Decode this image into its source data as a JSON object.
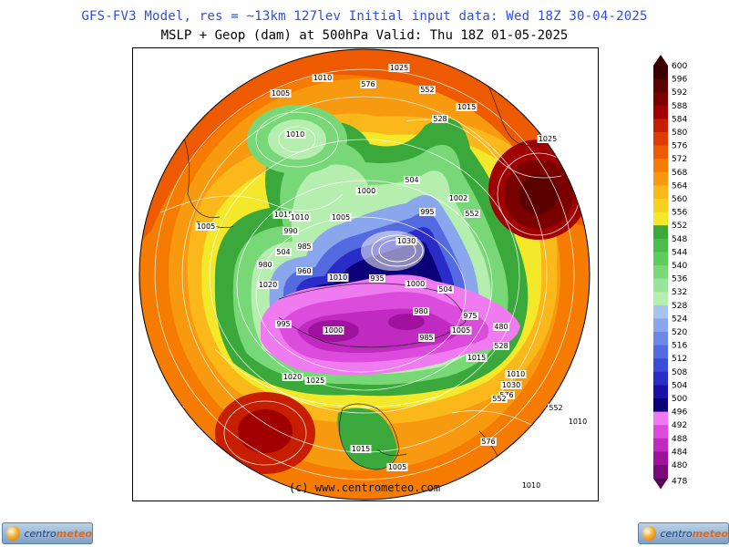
{
  "header": {
    "line1": "GFS-FV3 Model, res = ~13km 127lev     Initial input data: Wed 18Z 30-04-2025",
    "line2": "MSLP + Geop (dam) at 500hPa  Valid: Thu 18Z 01-05-2025"
  },
  "map": {
    "projection": "polar stereographic (southern hemisphere)",
    "credit": "(c) www.centrometeo.com",
    "labels": [
      "1025",
      "1010",
      "576",
      "552",
      "1005",
      "528",
      "1010",
      "1015",
      "1025",
      "1000",
      "504",
      "1002",
      "1005",
      "552",
      "1015",
      "1010",
      "1005",
      "990",
      "995",
      "985",
      "504",
      "980",
      "1020",
      "960",
      "1010",
      "1030",
      "935",
      "1000",
      "504",
      "980",
      "975",
      "480",
      "985",
      "995",
      "1000",
      "1005",
      "528",
      "1015",
      "1020",
      "1025",
      "1010",
      "1030",
      "576",
      "552",
      "552",
      "1010",
      "576",
      "1010",
      "1015",
      "1005"
    ]
  },
  "legend": {
    "levels": [
      "600",
      "596",
      "592",
      "588",
      "584",
      "580",
      "576",
      "572",
      "568",
      "564",
      "560",
      "556",
      "552",
      "548",
      "544",
      "540",
      "536",
      "532",
      "528",
      "524",
      "520",
      "516",
      "512",
      "508",
      "504",
      "500",
      "496",
      "492",
      "488",
      "484",
      "480",
      "478"
    ],
    "colors": [
      "#3a0000",
      "#5a0000",
      "#7a0000",
      "#a00000",
      "#c81e00",
      "#e03c00",
      "#ee5a00",
      "#f57c00",
      "#f89a10",
      "#fbb81a",
      "#f6d21e",
      "#f4e82a",
      "#3aa83a",
      "#4cbb4c",
      "#5ecb5e",
      "#78d878",
      "#98e498",
      "#b6eeb0",
      "#a6c4ee",
      "#8aa6ec",
      "#6e88e6",
      "#546ae0",
      "#3a4cd6",
      "#2a2cc8",
      "#1a10a8",
      "#0c0078",
      "#f07af0",
      "#dc4cdc",
      "#c02ac0",
      "#9e129e",
      "#7a0a7a",
      "#560856"
    ]
  },
  "logos": {
    "left_text_a": "centro",
    "left_text_b": "meteo",
    "right_text_a": "centro",
    "right_text_b": "meteo"
  }
}
